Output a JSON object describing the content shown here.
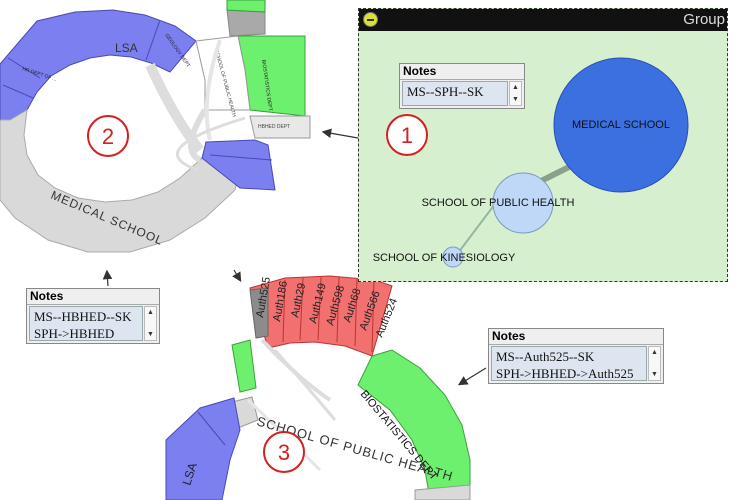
{
  "group_window": {
    "title": "Group",
    "notes": {
      "label": "Notes",
      "lines": [
        "MS--SPH--SK"
      ]
    },
    "nodes": {
      "medical_school": "MEDICAL SCHOOL",
      "public_health": "SCHOOL OF PUBLIC HEALTH",
      "kinesiology": "SCHOOL OF KINESIOLOGY"
    },
    "marker": "1"
  },
  "chord_view_2": {
    "marker": "2",
    "labels": {
      "lsa": "LSA",
      "medical_school": "MEDICAL SCHOOL"
    }
  },
  "notes_2": {
    "label": "Notes",
    "lines": [
      "MS--HBHED--SK",
      "SPH->HBHED"
    ]
  },
  "chord_view_3": {
    "marker": "3",
    "authors": [
      "Auth525",
      "Auth186",
      "Auth29",
      "Auth149",
      "Auth598",
      "Auth68",
      "Auth566",
      "Auth524"
    ],
    "labels": {
      "public_health": "SCHOOL OF PUBLIC HEALTH",
      "biostatistics": "BIOSTATISTICS DEPT",
      "lsa": "LSA"
    }
  },
  "notes_3": {
    "label": "Notes",
    "lines": [
      "MS--Auth525--SK",
      "SPH->HBHED->Auth525"
    ]
  },
  "colors": {
    "blue": "#7b7ff0",
    "green": "#6df06d",
    "red": "#f37070",
    "gray": "#d9d9d9",
    "panel": "#d6efcf",
    "node": "#bfd8f7",
    "bignode": "#3c6fe0",
    "marker": "#d42020"
  }
}
